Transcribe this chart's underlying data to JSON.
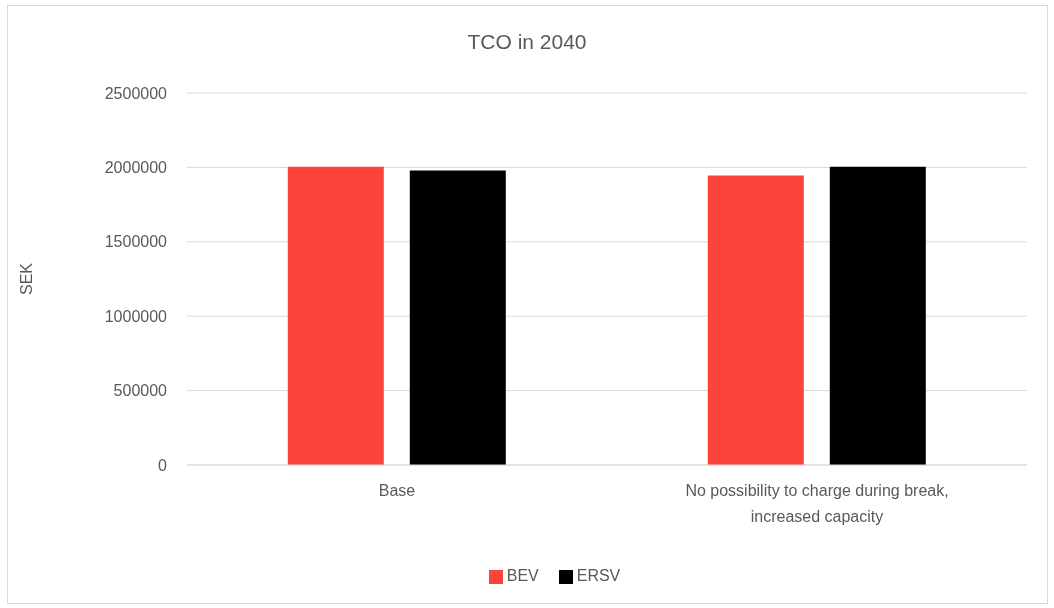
{
  "chart_data": {
    "type": "bar",
    "title": "TCO in 2040",
    "ylabel": "SEK",
    "categories": [
      "Base",
      "No possibility to charge during break, increased capacity"
    ],
    "series": [
      {
        "name": "BEV",
        "color": "#fd443a",
        "values": [
          2005000,
          1945000
        ]
      },
      {
        "name": "ERSV",
        "color": "#000000",
        "values": [
          1980000,
          2005000
        ]
      }
    ],
    "ylim": [
      0,
      2500000
    ],
    "yticks": [
      0,
      500000,
      1000000,
      1500000,
      2000000,
      2500000
    ],
    "grid": "y",
    "legend": "bottom"
  }
}
